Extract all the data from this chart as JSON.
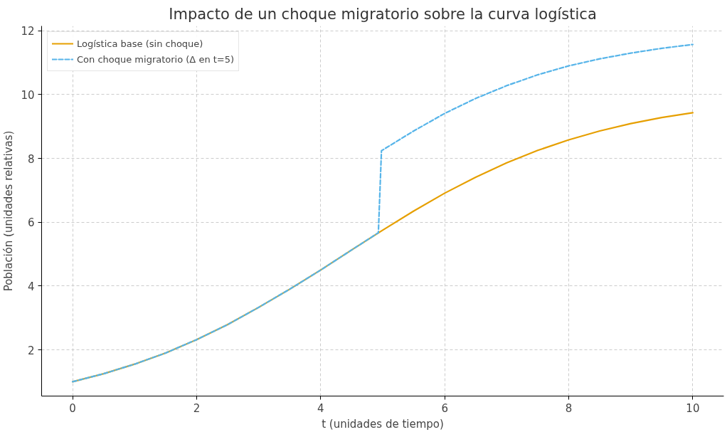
{
  "chart_data": {
    "type": "line",
    "title": "Impacto de un choque migratorio sobre la curva logística",
    "xlabel": "t (unidades de tiempo)",
    "ylabel": "Población (unidades relativas)",
    "xlim": [
      -0.5,
      10.5
    ],
    "ylim": [
      0.55,
      12.15
    ],
    "xticks": [
      0,
      2,
      4,
      6,
      8,
      10
    ],
    "yticks": [
      2,
      4,
      6,
      8,
      10,
      12
    ],
    "grid": true,
    "legend": "top left",
    "marker": "none",
    "series": [
      {
        "name": "Logística base (sin choque)",
        "color": "#e69f00",
        "line_style": "solid",
        "x": [
          0,
          0.5,
          1,
          1.5,
          2,
          2.5,
          3,
          3.5,
          4,
          4.5,
          5,
          5.5,
          6,
          6.5,
          7,
          7.5,
          8,
          8.5,
          9,
          9.5,
          10
        ],
        "values": [
          1.0,
          1.25,
          1.55,
          1.9,
          2.32,
          2.79,
          3.33,
          3.9,
          4.5,
          5.13,
          5.75,
          6.35,
          6.91,
          7.41,
          7.86,
          8.25,
          8.58,
          8.86,
          9.09,
          9.28,
          9.43
        ]
      },
      {
        "name": "Con choque migratorio (Δ en t=5)",
        "color": "#56b4e9",
        "line_style": "dashed",
        "x": [
          0,
          0.5,
          1,
          1.5,
          2,
          2.5,
          3,
          3.5,
          4,
          4.5,
          4.93,
          4.98,
          5.5,
          6,
          6.5,
          7,
          7.5,
          8,
          8.5,
          9,
          9.5,
          10
        ],
        "values": [
          1.0,
          1.25,
          1.55,
          1.9,
          2.32,
          2.79,
          3.33,
          3.9,
          4.5,
          5.13,
          5.67,
          8.24,
          8.86,
          9.41,
          9.88,
          10.28,
          10.62,
          10.9,
          11.12,
          11.3,
          11.45,
          11.57
        ]
      }
    ]
  }
}
